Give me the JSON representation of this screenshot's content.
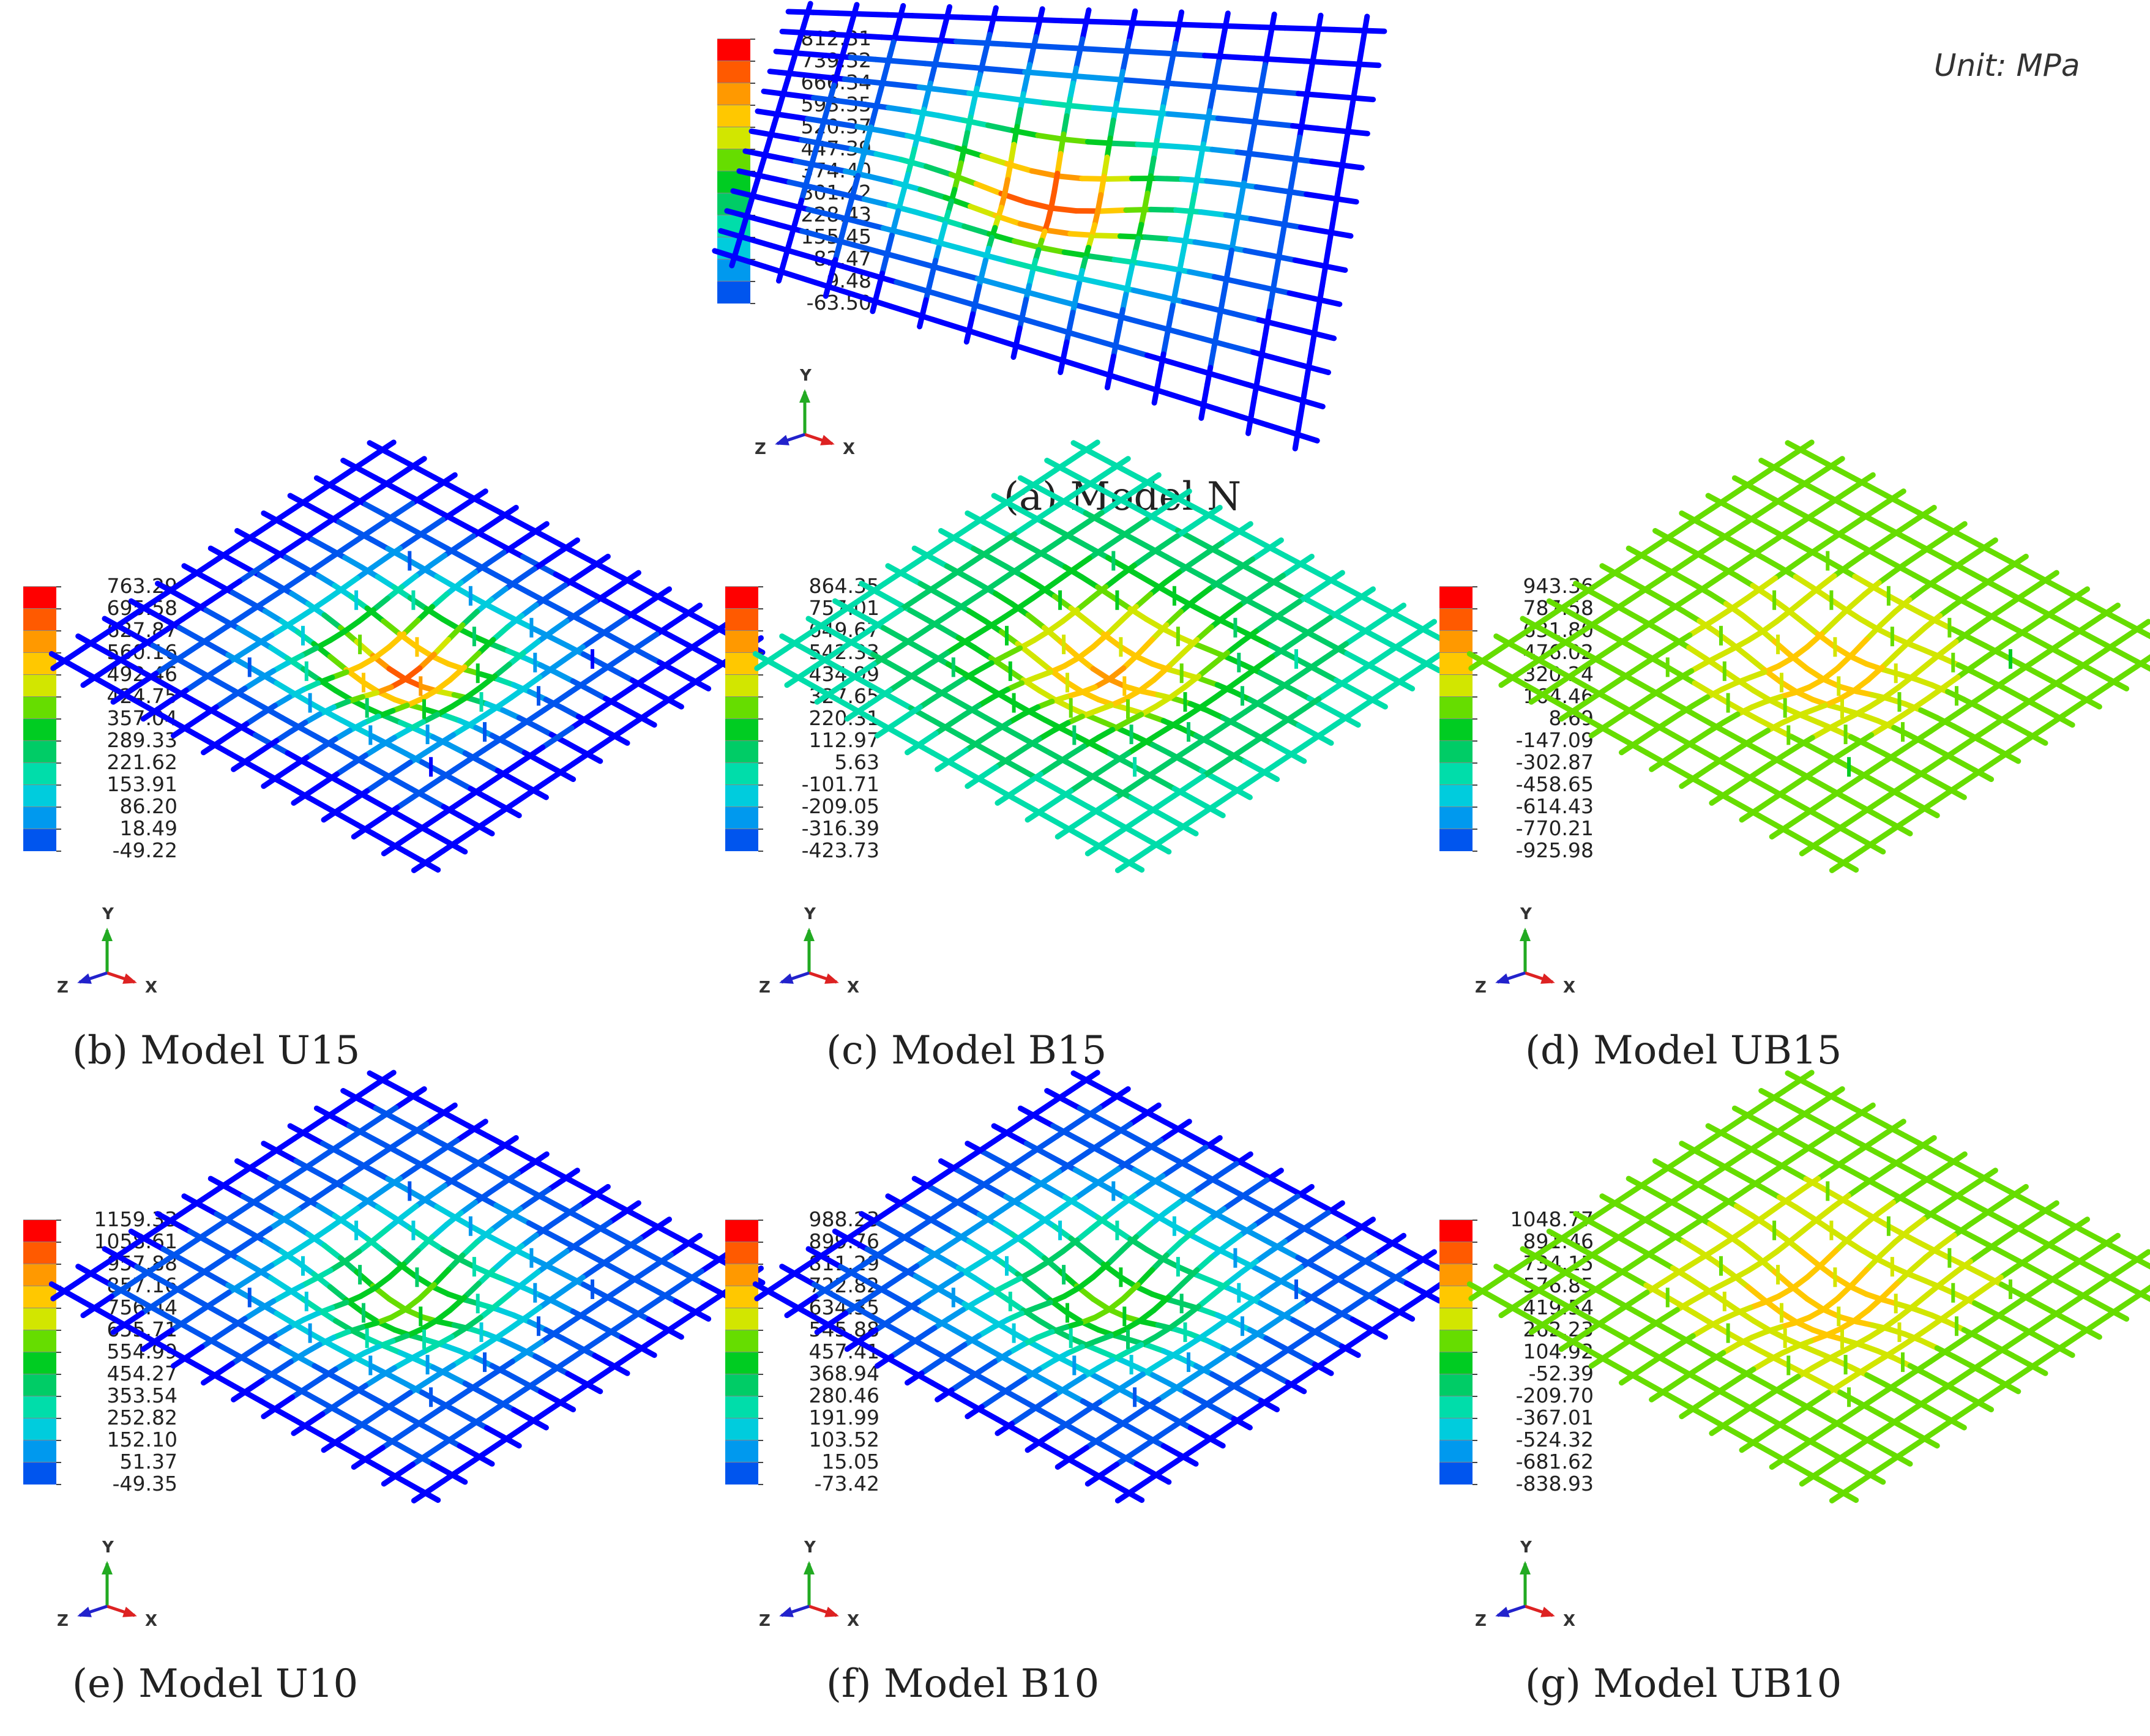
{
  "unit_label": "Unit: MPa",
  "colors": {
    "bands": [
      "#ff0000",
      "#ff5a00",
      "#ff9900",
      "#ffc800",
      "#d2e600",
      "#66dd00",
      "#00cc22",
      "#00cc66",
      "#00ddaa",
      "#00ccdd",
      "#0099ee",
      "#0055ee",
      "#0000ff"
    ]
  },
  "axis_labels": {
    "y": "Y",
    "z": "Z",
    "x": "X"
  },
  "panels": [
    {
      "id": "a",
      "caption": "(a) Model N",
      "legend": [
        "812.31",
        "739.32",
        "666.34",
        "593.35",
        "520.37",
        "447.39",
        "374.40",
        "301.42",
        "228.43",
        "155.45",
        "82.47",
        "9.48",
        "-63.50"
      ],
      "stiffeners": false,
      "scheme": "N"
    },
    {
      "id": "b",
      "caption": "(b) Model U15",
      "legend": [
        "763.29",
        "695.58",
        "627.87",
        "560.16",
        "492.46",
        "424.75",
        "357.04",
        "289.33",
        "221.62",
        "153.91",
        "86.20",
        "18.49",
        "-49.22"
      ],
      "stiffeners": true,
      "scheme": "U15"
    },
    {
      "id": "c",
      "caption": "(c) Model B15",
      "legend": [
        "864.35",
        "757.01",
        "649.67",
        "542.33",
        "434.99",
        "327.65",
        "220.31",
        "112.97",
        "5.63",
        "-101.71",
        "-209.05",
        "-316.39",
        "-423.73"
      ],
      "stiffeners": true,
      "scheme": "B15"
    },
    {
      "id": "d",
      "caption": "(d) Model UB15",
      "legend": [
        "943.36",
        "787.58",
        "631.80",
        "476.02",
        "320.24",
        "164.46",
        "8.69",
        "-147.09",
        "-302.87",
        "-458.65",
        "-614.43",
        "-770.21",
        "-925.98"
      ],
      "stiffeners": true,
      "scheme": "UB15"
    },
    {
      "id": "e",
      "caption": "(e) Model U10",
      "legend": [
        "1159.33",
        "1058.61",
        "957.88",
        "857.16",
        "756.44",
        "655.71",
        "554.99",
        "454.27",
        "353.54",
        "252.82",
        "152.10",
        "51.37",
        "-49.35"
      ],
      "stiffeners": true,
      "scheme": "U10"
    },
    {
      "id": "f",
      "caption": "(f) Model B10",
      "legend": [
        "988.23",
        "899.76",
        "811.29",
        "722.82",
        "634.35",
        "545.88",
        "457.41",
        "368.94",
        "280.46",
        "191.99",
        "103.52",
        "15.05",
        "-73.42"
      ],
      "stiffeners": true,
      "scheme": "B10"
    },
    {
      "id": "g",
      "caption": "(g) Model UB10",
      "legend": [
        "1048.77",
        "891.46",
        "734.15",
        "576.85",
        "419.54",
        "262.23",
        "104.92",
        "-52.39",
        "-209.70",
        "-367.01",
        "-524.32",
        "-681.62",
        "-838.93"
      ],
      "stiffeners": true,
      "scheme": "UB10"
    }
  ]
}
